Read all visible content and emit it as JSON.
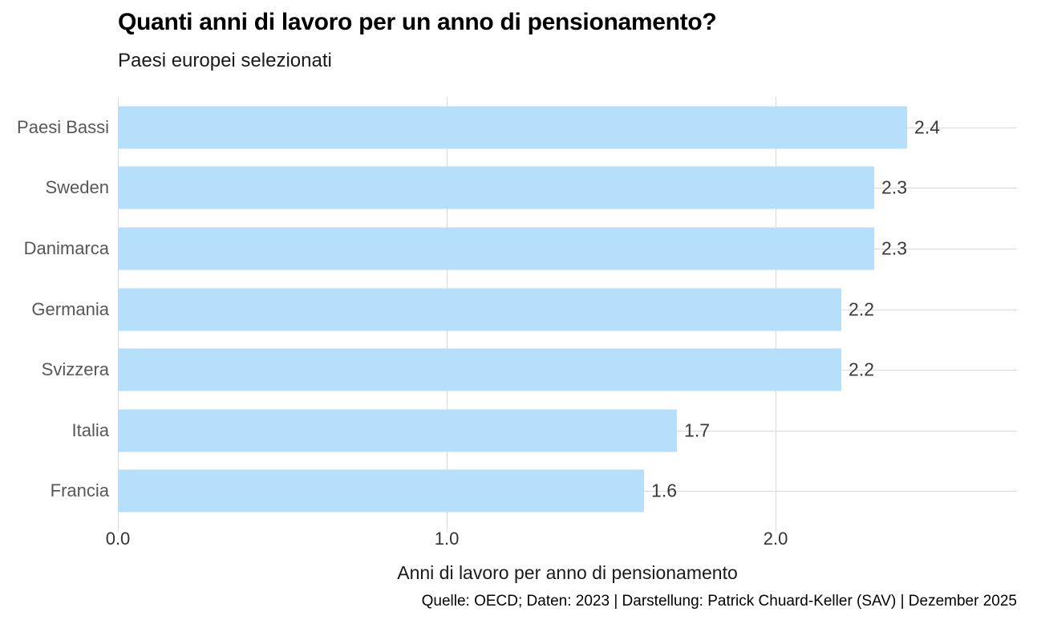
{
  "chart_data": {
    "type": "bar",
    "orientation": "horizontal",
    "title": "Quanti anni di lavoro per un anno di pensionamento?",
    "subtitle": "Paesi europei selezionati",
    "categories": [
      "Paesi Bassi",
      "Sweden",
      "Danimarca",
      "Germania",
      "Svizzera",
      "Italia",
      "Francia"
    ],
    "values": [
      2.4,
      2.3,
      2.3,
      2.2,
      2.2,
      1.7,
      1.6
    ],
    "value_labels": [
      "2.4",
      "2.3",
      "2.3",
      "2.2",
      "2.2",
      "1.7",
      "1.6"
    ],
    "xlabel": "Anni di lavoro per anno di pensionamento",
    "ylabel": "",
    "x_ticks": [
      0.0,
      1.0,
      2.0
    ],
    "x_tick_labels": [
      "0.0",
      "1.0",
      "2.0"
    ],
    "xlim": [
      0,
      2.734
    ],
    "grid": "vertical gridlines at ticks + horizontal line through each bar row",
    "legend": "none",
    "source": "Quelle: OECD; Daten: 2023 | Darstellung: Patrick Chuard-Keller (SAV) | Dezember 2025",
    "colors": {
      "bar": "#b5dffa",
      "grid": "#d9d9d9",
      "category_label": "#575757",
      "value_label": "#3a3a3a",
      "tick_label": "#333333",
      "title": "#000000",
      "axis_label": "#1a1a1a",
      "source": "#000000",
      "background": "#ffffff"
    }
  }
}
